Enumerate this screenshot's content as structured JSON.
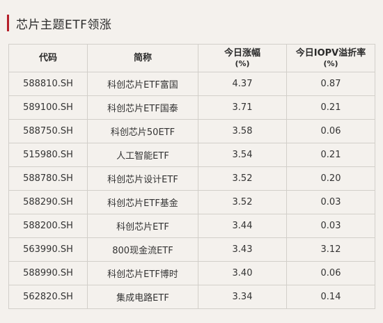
{
  "title": "芯片主题ETF领涨",
  "colors": {
    "accent": "#b5202a",
    "background": "#f4f1ed",
    "border": "#d2cfca"
  },
  "headers": {
    "code": "代码",
    "name": "简称",
    "change": "今日涨幅",
    "change_unit": "(%)",
    "premium": "今日IOPV溢折率",
    "premium_unit": "(%)"
  },
  "rows": [
    {
      "code": "588810.SH",
      "name": "科创芯片ETF富国",
      "change": "4.37",
      "premium": "0.87"
    },
    {
      "code": "589100.SH",
      "name": "科创芯片ETF国泰",
      "change": "3.71",
      "premium": "0.21"
    },
    {
      "code": "588750.SH",
      "name": "科创芯片50ETF",
      "change": "3.58",
      "premium": "0.06"
    },
    {
      "code": "515980.SH",
      "name": "人工智能ETF",
      "change": "3.54",
      "premium": "0.21"
    },
    {
      "code": "588780.SH",
      "name": "科创芯片设计ETF",
      "change": "3.52",
      "premium": "0.20"
    },
    {
      "code": "588290.SH",
      "name": "科创芯片ETF基金",
      "change": "3.52",
      "premium": "0.03"
    },
    {
      "code": "588200.SH",
      "name": "科创芯片ETF",
      "change": "3.44",
      "premium": "0.03"
    },
    {
      "code": "563990.SH",
      "name": "800现金流ETF",
      "change": "3.43",
      "premium": "3.12"
    },
    {
      "code": "588990.SH",
      "name": "科创芯片ETF博时",
      "change": "3.40",
      "premium": "0.06"
    },
    {
      "code": "562820.SH",
      "name": "集成电路ETF",
      "change": "3.34",
      "premium": "0.14"
    }
  ]
}
